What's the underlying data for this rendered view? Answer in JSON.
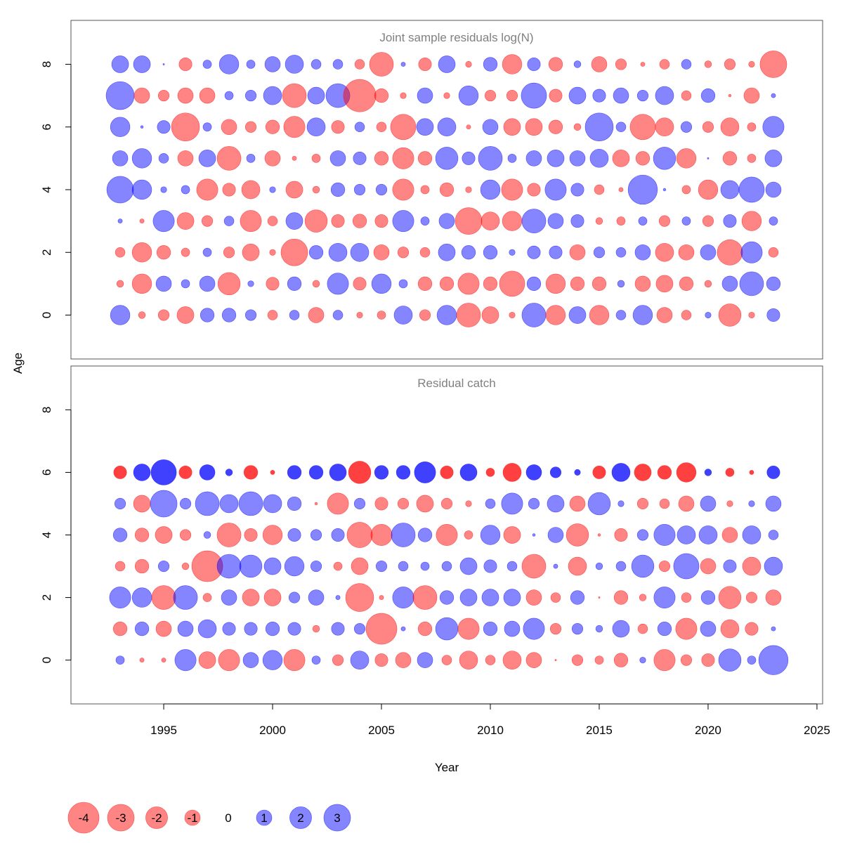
{
  "chart_data": {
    "type": "scatter",
    "subtype": "bubble",
    "xlabel": "Year",
    "ylabel": "Age",
    "xlim": [
      1990.74,
      2025.26
    ],
    "ylim": [
      -1.4,
      9.4
    ],
    "xticks": [
      1995,
      2000,
      2005,
      2010,
      2015,
      2020,
      2025
    ],
    "yticks": [
      0,
      2,
      4,
      6,
      8
    ],
    "years_start": 1993,
    "years_end": 2023,
    "colors": {
      "negative": "#ff0000",
      "positive": "#0000ff"
    },
    "legend": {
      "placement": "bottom-left",
      "values": [
        -4,
        -3,
        -2,
        -1,
        0,
        1,
        2,
        3
      ]
    },
    "panels": [
      {
        "title": "Joint sample residuals log(N)",
        "ages": [
          0,
          1,
          2,
          3,
          4,
          5,
          6,
          7,
          8
        ],
        "solid_ages": [],
        "values": [
          [
            1.6,
            -0.2,
            -0.5,
            -1.2,
            0.8,
            0.8,
            0.5,
            -0.4,
            0.4,
            -1.0,
            0.4,
            -0.15,
            -0.3,
            1.4,
            -0.5,
            1.6,
            -2.4,
            -1.2,
            -0.15,
            2.4,
            -1.6,
            1.2,
            -1.6,
            0.4,
            1.6,
            -1.0,
            -0.4,
            0.15,
            -2.1,
            -0.15,
            0.7
          ],
          [
            -0.2,
            -1.6,
            1.0,
            0.3,
            1.0,
            -2.1,
            0.15,
            -0.7,
            0.8,
            -0.2,
            1.9,
            -0.7,
            1.6,
            0.3,
            -0.8,
            -0.8,
            -1.9,
            -0.8,
            -2.7,
            0.8,
            -1.6,
            -0.8,
            -0.8,
            0.2,
            -1.0,
            -1.2,
            -0.8,
            -0.2,
            1.0,
            2.4,
            0.8
          ],
          [
            -0.4,
            -1.6,
            -0.8,
            -0.3,
            0.3,
            -0.5,
            -1.2,
            -0.15,
            -3.0,
            0.8,
            1.4,
            1.4,
            -1.0,
            -0.5,
            -0.4,
            1.2,
            0.8,
            0.8,
            0.15,
            0.7,
            0.7,
            -1.0,
            0.5,
            0.4,
            1.0,
            -1.4,
            -1.0,
            1.0,
            -2.7,
            1.9,
            -0.4
          ],
          [
            0.08,
            -0.08,
            1.9,
            -1.2,
            -0.5,
            0.4,
            -1.9,
            -0.4,
            1.2,
            -2.1,
            -0.7,
            -0.8,
            -0.7,
            1.9,
            0.3,
            1.0,
            -3.0,
            -1.4,
            -1.6,
            2.4,
            1.0,
            0.7,
            -0.2,
            -0.3,
            0.3,
            -0.5,
            0.3,
            -0.5,
            0.7,
            -1.6,
            0.3
          ],
          [
            3.0,
            1.6,
            0.15,
            0.3,
            -1.9,
            -0.7,
            -1.4,
            0.15,
            -1.2,
            -0.2,
            0.8,
            0.5,
            0.5,
            -1.9,
            -0.3,
            -0.8,
            -0.15,
            1.6,
            -1.9,
            -0.7,
            1.9,
            0.7,
            -0.4,
            -0.08,
            3.6,
            0.03,
            -0.3,
            -1.6,
            1.4,
            2.7,
            1.0
          ],
          [
            1.0,
            1.6,
            0.4,
            -1.0,
            1.2,
            -2.4,
            0.3,
            -1.0,
            -0.08,
            -0.3,
            1.0,
            0.7,
            -0.8,
            -1.9,
            -0.8,
            2.1,
            0.7,
            2.4,
            0.3,
            1.0,
            1.2,
            1.0,
            1.4,
            -1.2,
            -0.8,
            2.1,
            -1.6,
            0.01,
            -0.8,
            -0.3,
            1.2
          ],
          [
            1.6,
            0.03,
            0.7,
            -3.3,
            0.3,
            -1.0,
            -0.5,
            -0.8,
            -1.9,
            1.4,
            -0.7,
            0.4,
            -0.4,
            -2.7,
            1.2,
            1.4,
            -0.08,
            1.0,
            -1.2,
            -1.2,
            -0.8,
            -0.2,
            3.3,
            0.4,
            -2.7,
            -1.4,
            0.5,
            -0.5,
            -1.4,
            -0.3,
            1.9
          ],
          [
            3.3,
            -1.0,
            -0.5,
            -1.0,
            -1.0,
            0.3,
            0.5,
            1.4,
            -2.4,
            1.2,
            2.4,
            -4.4,
            -0.8,
            -0.15,
            1.0,
            -0.15,
            1.6,
            -0.5,
            -0.5,
            2.7,
            -0.7,
            1.2,
            0.7,
            1.0,
            0.5,
            1.4,
            -0.4,
            0.8,
            -0.03,
            -1.0,
            0.08
          ],
          [
            1.2,
            1.2,
            0.01,
            -0.7,
            0.3,
            1.6,
            0.3,
            1.0,
            1.4,
            0.4,
            0.4,
            -0.4,
            -2.4,
            0.08,
            -0.7,
            1.2,
            -0.15,
            0.8,
            -1.6,
            0.7,
            -0.8,
            0.2,
            -1.0,
            -0.5,
            -0.08,
            -0.4,
            0.4,
            -0.2,
            -0.5,
            -0.15,
            -3.0
          ]
        ]
      },
      {
        "title": "Residual catch",
        "ages": [
          0,
          1,
          2,
          3,
          4,
          5,
          6
        ],
        "solid_ages": [
          6
        ],
        "values": [
          [
            0.3,
            -0.08,
            -0.08,
            1.9,
            -1.2,
            -1.9,
            1.0,
            1.6,
            -1.9,
            0.3,
            -0.5,
            1.4,
            -0.7,
            -1.0,
            1.0,
            -0.4,
            -1.4,
            -0.4,
            -1.4,
            -1.0,
            -0.01,
            -0.5,
            -0.3,
            -0.8,
            0.15,
            -1.9,
            -0.5,
            -0.7,
            2.1,
            0.3,
            3.6
          ],
          [
            -0.8,
            0.8,
            -1.0,
            1.0,
            1.4,
            0.7,
            0.7,
            0.8,
            0.7,
            -0.2,
            0.7,
            0.5,
            -4.0,
            0.08,
            -0.8,
            2.1,
            -1.9,
            0.8,
            1.0,
            1.9,
            -0.5,
            0.5,
            0.2,
            1.2,
            -0.4,
            0.8,
            -1.9,
            1.0,
            -1.4,
            -0.7,
            0.08
          ],
          [
            1.9,
            1.6,
            -2.4,
            2.4,
            -0.3,
            1.0,
            -1.2,
            -1.2,
            0.5,
            1.0,
            0.08,
            -3.3,
            -0.08,
            1.9,
            -2.4,
            0.8,
            1.2,
            1.2,
            1.2,
            -1.0,
            -0.4,
            0.8,
            -0.01,
            -0.8,
            -0.2,
            1.9,
            -0.4,
            0.8,
            -2.1,
            -0.5,
            -1.0
          ],
          [
            -0.4,
            -0.8,
            0.5,
            -0.2,
            -4.0,
            2.4,
            2.1,
            1.2,
            1.6,
            0.5,
            -0.3,
            -1.2,
            0.5,
            0.4,
            0.3,
            0.4,
            1.2,
            0.7,
            0.4,
            -2.4,
            0.08,
            -1.4,
            0.2,
            0.4,
            2.1,
            -0.5,
            2.7,
            -1.0,
            0.7,
            -1.4,
            1.4
          ],
          [
            0.8,
            -0.8,
            -1.2,
            -0.5,
            0.2,
            -2.4,
            -0.7,
            -1.6,
            0.7,
            0.5,
            0.7,
            -2.7,
            -1.9,
            2.4,
            0.8,
            -1.9,
            -0.3,
            1.6,
            -1.2,
            0.03,
            1.0,
            -2.1,
            -0.03,
            -0.7,
            0.5,
            1.9,
            1.4,
            1.4,
            -1.0,
            1.4,
            0.4
          ],
          [
            0.5,
            -1.2,
            3.0,
            0.5,
            2.4,
            1.4,
            2.4,
            1.4,
            0.8,
            -0.03,
            -1.9,
            0.5,
            -0.7,
            -0.5,
            -1.2,
            -0.5,
            -0.15,
            0.4,
            1.9,
            0.5,
            1.2,
            -1.0,
            2.1,
            0.15,
            -0.5,
            -0.4,
            -1.0,
            1.0,
            -0.15,
            0.15,
            1.0
          ],
          [
            -0.7,
            1.2,
            2.7,
            -0.7,
            1.0,
            0.2,
            -0.8,
            -0.08,
            0.8,
            0.8,
            1.2,
            -2.1,
            0.8,
            0.8,
            1.9,
            -0.7,
            1.2,
            -0.3,
            -1.4,
            1.0,
            0.5,
            0.15,
            -0.7,
            1.4,
            -1.2,
            -0.8,
            -1.6,
            0.2,
            -0.3,
            -0.08,
            0.7
          ]
        ]
      }
    ]
  }
}
